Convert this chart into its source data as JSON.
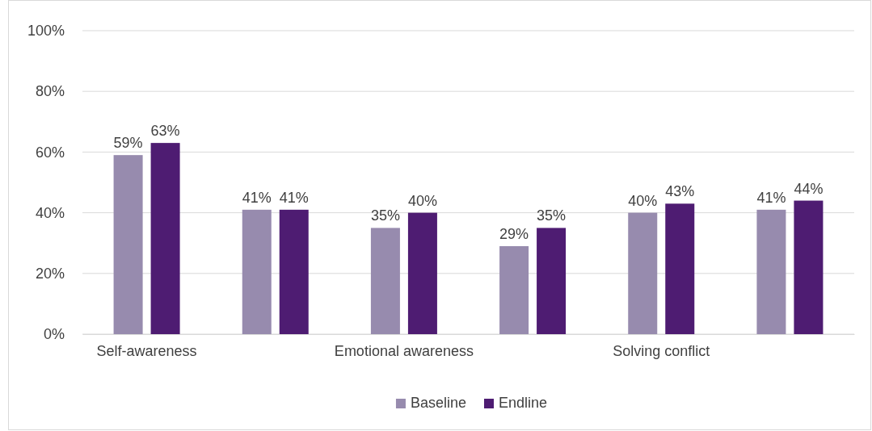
{
  "chart_data": {
    "type": "bar",
    "categories": [
      "Self-awareness",
      null,
      "Emotional awareness",
      null,
      "Solving conflict",
      null
    ],
    "series": [
      {
        "name": "Baseline",
        "color": "#978bae",
        "values": [
          59,
          41,
          35,
          29,
          40,
          41
        ],
        "value_labels": [
          "59%",
          "41%",
          "35%",
          "29%",
          "40%",
          "41%"
        ]
      },
      {
        "name": "Endline",
        "color": "#4e1c72",
        "values": [
          63,
          41,
          40,
          35,
          43,
          44
        ],
        "value_labels": [
          "63%",
          "41%",
          "40%",
          "35%",
          "43%",
          "44%"
        ]
      }
    ],
    "ylim": [
      0,
      100
    ],
    "yticks": [
      {
        "value": 0,
        "label": "0%"
      },
      {
        "value": 20,
        "label": "20%"
      },
      {
        "value": 40,
        "label": "40%"
      },
      {
        "value": 60,
        "label": "60%"
      },
      {
        "value": 80,
        "label": "80%"
      },
      {
        "value": 100,
        "label": "100%"
      }
    ],
    "grid": "y",
    "legend": "bottom"
  }
}
